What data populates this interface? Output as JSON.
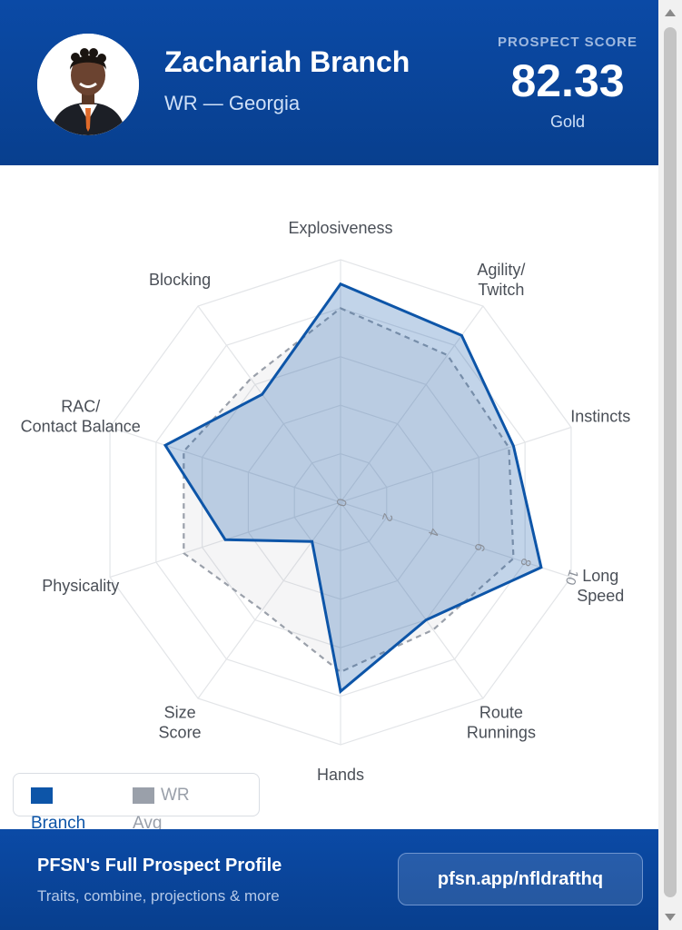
{
  "header": {
    "name": "Zachariah Branch",
    "subtitle": "WR — Georgia",
    "score_label": "PROSPECT SCORE",
    "score": "82.33",
    "tier": "Gold"
  },
  "colors": {
    "brand_blue": "#0b4aa6",
    "branch_series": "#0d55a8",
    "avg_series": "#9aa0aa",
    "grid": "#e3e5e8"
  },
  "chart_data": {
    "type": "radar",
    "title": "",
    "axes": [
      {
        "label": [
          "Explosiveness"
        ]
      },
      {
        "label": [
          "Agility/",
          "Twitch"
        ]
      },
      {
        "label": [
          "Instincts"
        ]
      },
      {
        "label": [
          "Long",
          "Speed"
        ]
      },
      {
        "label": [
          "Route",
          "Runnings"
        ]
      },
      {
        "label": [
          "Hands"
        ]
      },
      {
        "label": [
          "Size",
          "Score"
        ]
      },
      {
        "label": [
          "Physicality"
        ]
      },
      {
        "label": [
          "RAC/",
          "Contact Balance"
        ]
      },
      {
        "label": [
          "Blocking"
        ]
      }
    ],
    "range": [
      0,
      10
    ],
    "ticks": [
      0,
      2,
      4,
      6,
      8,
      10
    ],
    "grid": true,
    "legend_position": "bottom-left",
    "series": [
      {
        "name": "Branch",
        "values": [
          9.0,
          8.5,
          7.5,
          8.7,
          6.0,
          7.8,
          2.0,
          5.0,
          7.6,
          5.5
        ]
      },
      {
        "name": "WR Avg",
        "values": [
          8.0,
          7.5,
          7.3,
          7.5,
          6.5,
          7.0,
          5.5,
          6.8,
          6.8,
          6.3
        ]
      }
    ]
  },
  "legend": {
    "branch_label": [
      "Branch"
    ],
    "avg_label": [
      "WR",
      "Avg"
    ]
  },
  "footer": {
    "title": "PFSN's Full Prospect Profile",
    "subtitle": "Traits, combine, projections & more",
    "button_label": "pfsn.app/nfldrafthq"
  }
}
